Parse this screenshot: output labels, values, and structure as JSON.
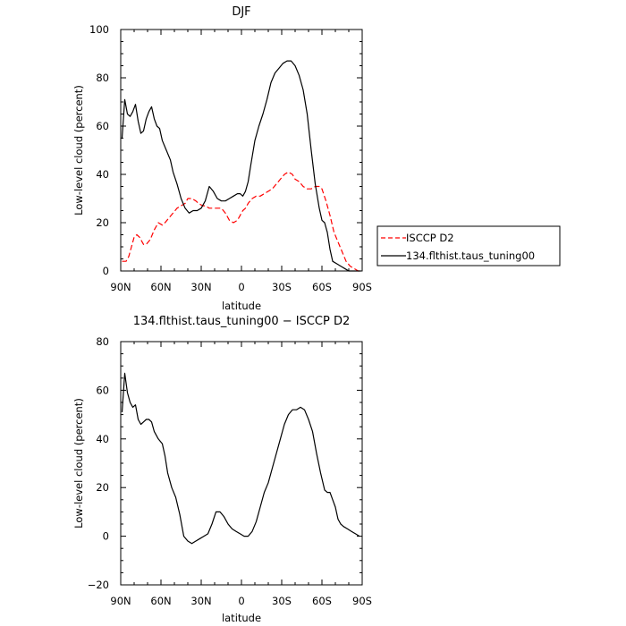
{
  "chart_data": [
    {
      "type": "line",
      "title": "DJF",
      "xlabel": "latitude",
      "ylabel": "Low-level cloud (percent)",
      "xlim": [
        90,
        -90
      ],
      "ylim": [
        0,
        100
      ],
      "x_ticks": [
        90,
        60,
        30,
        0,
        -30,
        -60,
        -90
      ],
      "x_tick_labels": [
        "90N",
        "60N",
        "30N",
        "0",
        "30S",
        "60S",
        "90S"
      ],
      "y_ticks": [
        0,
        20,
        40,
        60,
        80,
        100
      ],
      "y_tick_labels": [
        "0",
        "20",
        "40",
        "60",
        "80",
        "100"
      ],
      "grid": false,
      "legend": "right",
      "series": [
        {
          "name": "ISCCP D2",
          "color": "#ff0000",
          "dash": "dashed",
          "x": [
            89,
            86,
            84,
            82,
            80,
            78,
            76,
            73,
            71,
            68,
            65,
            62,
            59,
            57,
            54,
            51,
            48,
            45,
            42,
            40,
            37,
            34,
            32,
            29,
            27,
            24,
            21,
            18,
            15,
            12,
            9,
            6,
            3,
            1,
            -1,
            -3,
            -5,
            -8,
            -11,
            -14,
            -17,
            -20,
            -23,
            -26,
            -29,
            -32,
            -35,
            -38,
            -40,
            -43,
            -46,
            -49,
            -52,
            -55,
            -58,
            -60,
            -63,
            -66,
            -69,
            -72,
            -75,
            -78,
            -81,
            -84,
            -87,
            -89
          ],
          "y": [
            4,
            4,
            6,
            10,
            14,
            15,
            14,
            11,
            11,
            13,
            17,
            20,
            19,
            20,
            22,
            24,
            26,
            27,
            28,
            30,
            30,
            29,
            28,
            27,
            27,
            26,
            26,
            26,
            26,
            24,
            21,
            20,
            21,
            23,
            25,
            26,
            28,
            30,
            31,
            31,
            32,
            33,
            34,
            36,
            38,
            40,
            41,
            40,
            38,
            37,
            35,
            34,
            34,
            35,
            35,
            34,
            29,
            23,
            16,
            12,
            8,
            4,
            2,
            1,
            0,
            0
          ]
        },
        {
          "name": "134.flthist.taus_tuning00",
          "color": "#000000",
          "dash": "solid",
          "x": [
            89,
            87,
            85,
            83,
            81,
            79,
            77,
            75,
            73,
            71,
            69,
            67,
            65,
            63,
            61,
            59,
            56,
            53,
            51,
            48,
            45,
            42,
            39,
            36,
            33,
            30,
            27,
            24,
            21,
            18,
            15,
            12,
            9,
            6,
            3,
            1,
            -1,
            -3,
            -5,
            -7,
            -10,
            -13,
            -16,
            -19,
            -22,
            -25,
            -28,
            -31,
            -34,
            -37,
            -40,
            -43,
            -46,
            -49,
            -52,
            -55,
            -58,
            -60,
            -62,
            -64,
            -66,
            -68,
            -71,
            -74,
            -77,
            -80,
            -83,
            -86,
            -89
          ],
          "y": [
            55,
            71,
            65,
            64,
            66,
            69,
            62,
            57,
            58,
            63,
            66,
            68,
            63,
            60,
            59,
            54,
            50,
            46,
            41,
            36,
            30,
            26,
            24,
            25,
            25,
            26,
            29,
            35,
            33,
            30,
            29,
            29,
            30,
            31,
            32,
            32,
            31,
            33,
            37,
            44,
            54,
            60,
            65,
            71,
            78,
            82,
            84,
            86,
            87,
            87,
            85,
            81,
            75,
            65,
            50,
            36,
            26,
            21,
            20,
            16,
            9,
            4,
            3,
            2,
            1,
            0,
            0,
            0,
            0
          ]
        }
      ]
    },
    {
      "type": "line",
      "title": "134.flthist.taus_tuning00 − ISCCP D2",
      "xlabel": "latitude",
      "ylabel": "Low-level cloud (percent)",
      "xlim": [
        90,
        -90
      ],
      "ylim": [
        -20,
        80
      ],
      "x_ticks": [
        90,
        60,
        30,
        0,
        -30,
        -60,
        -90
      ],
      "x_tick_labels": [
        "90N",
        "60N",
        "30N",
        "0",
        "30S",
        "60S",
        "90S"
      ],
      "y_ticks": [
        -20,
        0,
        20,
        40,
        60,
        80
      ],
      "y_tick_labels": [
        "−20",
        "0",
        "20",
        "40",
        "60",
        "80"
      ],
      "grid": false,
      "series": [
        {
          "color": "#000000",
          "dash": "solid",
          "x": [
            89,
            87,
            85,
            83,
            81,
            79,
            77,
            75,
            73,
            71,
            69,
            67,
            65,
            62,
            59,
            57,
            55,
            52,
            49,
            46,
            43,
            40,
            37,
            34,
            31,
            28,
            25,
            22,
            19,
            16,
            13,
            10,
            7,
            4,
            1,
            -2,
            -5,
            -8,
            -11,
            -14,
            -17,
            -20,
            -23,
            -26,
            -29,
            -32,
            -35,
            -38,
            -41,
            -44,
            -47,
            -50,
            -53,
            -56,
            -59,
            -62,
            -64,
            -66,
            -68,
            -70,
            -72,
            -74,
            -76,
            -79,
            -82,
            -85,
            -88
          ],
          "y": [
            51,
            67,
            59,
            55,
            53,
            54,
            48,
            46,
            47,
            48,
            48,
            47,
            43,
            40,
            38,
            33,
            26,
            20,
            16,
            9,
            0,
            -2,
            -3,
            -2,
            -1,
            0,
            1,
            5,
            10,
            10,
            8,
            5,
            3,
            2,
            1,
            0,
            0,
            2,
            6,
            12,
            18,
            22,
            28,
            34,
            40,
            46,
            50,
            52,
            52,
            53,
            52,
            48,
            43,
            34,
            26,
            19,
            18,
            18,
            15,
            12,
            7,
            5,
            4,
            3,
            2,
            1,
            0
          ]
        }
      ]
    }
  ]
}
